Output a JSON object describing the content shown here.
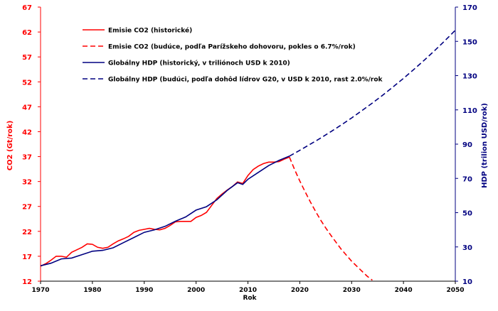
{
  "chart_data": {
    "type": "line",
    "title": "",
    "xlabel": "Rok",
    "ylabel_left": "CO2 (Gt/rok)",
    "ylabel_right": "HDP (trilion USD/rok)",
    "xlim": [
      1970,
      2050
    ],
    "ylim_left": [
      12,
      67
    ],
    "ylim_right": [
      10,
      170
    ],
    "x_ticks": [
      1970,
      1980,
      1990,
      2000,
      2010,
      2020,
      2030,
      2040,
      2050
    ],
    "y_left_ticks": [
      12,
      17,
      22,
      27,
      32,
      37,
      42,
      47,
      52,
      57,
      62,
      67
    ],
    "y_right_ticks": [
      10,
      30,
      50,
      70,
      90,
      110,
      130,
      150,
      170
    ],
    "grid": false,
    "legend_position": "top-left",
    "colors": {
      "co2": "#ff0000",
      "gdp": "#000080",
      "left_axis": "#ff0000",
      "right_axis": "#000080"
    },
    "series": [
      {
        "name": "Emisie CO2 (historické)",
        "axis": "left",
        "style": "solid",
        "color": "#ff0000",
        "x": [
          1970,
          1971,
          1972,
          1973,
          1974,
          1975,
          1976,
          1977,
          1978,
          1979,
          1980,
          1981,
          1982,
          1983,
          1984,
          1985,
          1986,
          1987,
          1988,
          1989,
          1990,
          1991,
          1992,
          1993,
          1994,
          1995,
          1996,
          1997,
          1998,
          1999,
          2000,
          2001,
          2002,
          2003,
          2004,
          2005,
          2006,
          2007,
          2008,
          2009,
          2010,
          2011,
          2012,
          2013,
          2014,
          2015,
          2016,
          2017,
          2018
        ],
        "y": [
          15.0,
          15.5,
          16.2,
          17.0,
          17.0,
          16.8,
          17.8,
          18.3,
          18.8,
          19.5,
          19.4,
          18.8,
          18.6,
          18.8,
          19.5,
          20.1,
          20.5,
          21.0,
          21.8,
          22.2,
          22.4,
          22.6,
          22.4,
          22.3,
          22.6,
          23.2,
          23.9,
          24.0,
          24.0,
          24.0,
          24.8,
          25.2,
          25.8,
          27.2,
          28.6,
          29.5,
          30.3,
          31.0,
          31.9,
          31.6,
          33.2,
          34.4,
          35.1,
          35.6,
          35.9,
          35.9,
          36.0,
          36.5,
          36.9
        ]
      },
      {
        "name": "Emisie CO2 (budúce, podľa Parížskeho dohovoru, pokles o 6.7%/rok)",
        "axis": "left",
        "style": "dashed",
        "color": "#ff0000",
        "x": [
          2018,
          2019,
          2020,
          2021,
          2022,
          2023,
          2024,
          2025,
          2026,
          2027,
          2028,
          2029,
          2030,
          2031,
          2032,
          2033,
          2034
        ],
        "y": [
          36.9,
          34.4,
          32.1,
          30.0,
          28.0,
          26.1,
          24.3,
          22.7,
          21.2,
          19.8,
          18.4,
          17.2,
          16.0,
          15.0,
          14.0,
          13.0,
          12.2
        ]
      },
      {
        "name": "Globálny HDP (historický, v triliónoch USD k 2010)",
        "axis": "right",
        "style": "solid",
        "color": "#000080",
        "x": [
          1970,
          1972,
          1974,
          1976,
          1978,
          1980,
          1982,
          1984,
          1986,
          1988,
          1990,
          1992,
          1994,
          1996,
          1998,
          2000,
          2002,
          2004,
          2006,
          2008,
          2009,
          2010,
          2012,
          2014,
          2016,
          2018
        ],
        "y": [
          19.0,
          20.5,
          23.0,
          23.5,
          25.5,
          27.5,
          28.0,
          29.5,
          32.5,
          35.5,
          38.5,
          40.0,
          42.0,
          45.0,
          47.5,
          51.5,
          53.5,
          57.5,
          63.0,
          67.5,
          66.5,
          69.5,
          73.5,
          77.5,
          80.5,
          83.0
        ]
      },
      {
        "name": "Globálny HDP (budúci, podľa dohôd lídrov G20, v USD k 2010, rast 2.0%/rok",
        "axis": "right",
        "style": "dashed",
        "color": "#000080",
        "x": [
          2018,
          2020,
          2022,
          2024,
          2026,
          2028,
          2030,
          2032,
          2034,
          2036,
          2038,
          2040,
          2042,
          2044,
          2046,
          2048,
          2050
        ],
        "y": [
          83.0,
          86.4,
          89.9,
          93.5,
          97.3,
          101.2,
          105.3,
          109.6,
          114.0,
          118.6,
          123.4,
          128.4,
          133.6,
          139.0,
          144.6,
          150.4,
          156.5
        ]
      }
    ]
  }
}
